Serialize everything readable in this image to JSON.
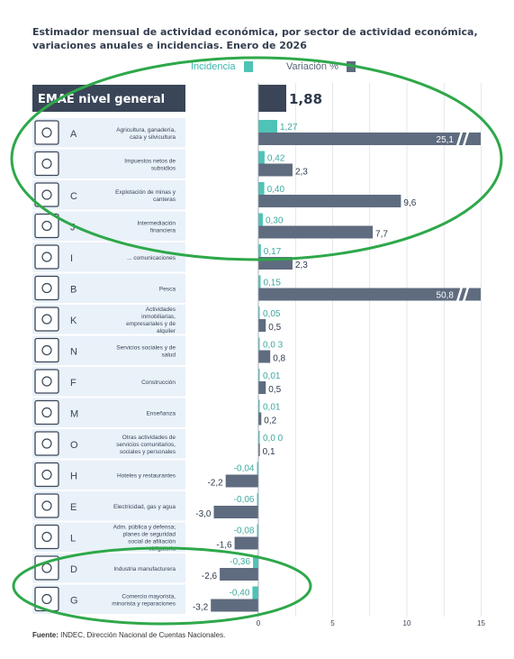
{
  "header": {
    "title_line1": "Estimador mensual de actividad económica, por sector de actividad económica,",
    "title_line2": "variaciones anuales e incidencias. Enero de 2026"
  },
  "legend": {
    "incidence_label": "Incidencia",
    "variation_label": "Variación %"
  },
  "colors": {
    "incidence": "#4fc3b6",
    "variation": "#5f6b7f",
    "header_band": "#3a4557",
    "row_band": "#e9f1f9",
    "highlight_circle": "#2ea84a"
  },
  "source": {
    "label": "Fuente:",
    "text": "INDEC, Dirección Nacional de Cuentas Nacionales."
  },
  "chart_data": {
    "type": "bar",
    "title": "Estimador mensual de actividad económica, por sector de actividad económica, variaciones anuales e incidencias. Enero de 2026",
    "xlim": [
      -3.5,
      15
    ],
    "x_ticks": [
      0,
      5,
      10,
      15
    ],
    "x_tick_labels": [
      "0",
      "5",
      "10",
      "15"
    ],
    "grid": "vertical",
    "legend_position": "top-center",
    "general": {
      "label": "EMAE nivel general",
      "value": 1.88,
      "value_label": "1,88"
    },
    "rows": [
      {
        "code": "A",
        "sector": "Agricultura, ganadería, caza y silvicultura",
        "icon": "tractor-icon",
        "incidence": 1.27,
        "incidence_label": "1,27",
        "variation": 25.1,
        "variation_label": "25,1",
        "broken": true
      },
      {
        "code": "",
        "sector": "Impuestos netos de subsidios",
        "icon": "tax-document-icon",
        "incidence": 0.42,
        "incidence_label": "0,42",
        "variation": 2.3,
        "variation_label": "2,3"
      },
      {
        "code": "C",
        "sector": "Explotación de minas y canteras",
        "icon": "oil-pump-icon",
        "incidence": 0.4,
        "incidence_label": "0,40",
        "variation": 9.6,
        "variation_label": "9,6"
      },
      {
        "code": "J",
        "sector": "Intermediación financiera",
        "icon": "bank-icon",
        "incidence": 0.3,
        "incidence_label": "0,30",
        "variation": 7.7,
        "variation_label": "7,7"
      },
      {
        "code": "I",
        "sector": "... comunicaciones",
        "icon": "transport-communications-icon",
        "incidence": 0.17,
        "incidence_label": "0,17",
        "variation": 2.3,
        "variation_label": "2,3"
      },
      {
        "code": "B",
        "sector": "Pesca",
        "icon": "fish-icon",
        "incidence": 0.15,
        "incidence_label": "0,15",
        "variation": 50.8,
        "variation_label": "50,8",
        "broken": true
      },
      {
        "code": "K",
        "sector": "Actividades inmobiliarias, empresariales y de alquiler",
        "icon": "real-estate-monitor-icon",
        "incidence": 0.05,
        "incidence_label": "0,05",
        "variation": 0.5,
        "variation_label": "0,5"
      },
      {
        "code": "N",
        "sector": "Servicios sociales y de salud",
        "icon": "health-cross-icon",
        "incidence": 0.03,
        "incidence_label": "0,0 3",
        "variation": 0.8,
        "variation_label": "0,8"
      },
      {
        "code": "F",
        "sector": "Construcción",
        "icon": "construction-icon",
        "incidence": 0.01,
        "incidence_label": "0,01",
        "variation": 0.5,
        "variation_label": "0,5"
      },
      {
        "code": "M",
        "sector": "Enseñanza",
        "icon": "book-icon",
        "incidence": 0.01,
        "incidence_label": "0,01",
        "variation": 0.2,
        "variation_label": "0,2"
      },
      {
        "code": "O",
        "sector": "Otras actividades de servicios comunitarios, sociales y personales",
        "icon": "community-services-icon",
        "incidence": 0.0,
        "incidence_label": "0,0 0",
        "variation": 0.1,
        "variation_label": "0,1"
      },
      {
        "code": "H",
        "sector": "Hoteles y restaurantes",
        "icon": "cutlery-icon",
        "incidence": -0.04,
        "incidence_label": "-0,04",
        "variation": -2.2,
        "variation_label": "-2,2"
      },
      {
        "code": "E",
        "sector": "Electricidad, gas y agua",
        "icon": "utilities-icon",
        "incidence": -0.06,
        "incidence_label": "-0,06",
        "variation": -3.0,
        "variation_label": "-3,0"
      },
      {
        "code": "L",
        "sector": "Adm. pública y defensa; planes de seguridad social de afiliación obligatoria",
        "icon": "public-building-icon",
        "incidence": -0.08,
        "incidence_label": "-0,08",
        "variation": -1.6,
        "variation_label": "-1,6"
      },
      {
        "code": "D",
        "sector": "Industria manufacturera",
        "icon": "gears-icon",
        "incidence": -0.36,
        "incidence_label": "-0,36",
        "variation": -2.6,
        "variation_label": "-2,6"
      },
      {
        "code": "G",
        "sector": "Comercio mayorista, minorista y reparaciones",
        "icon": "shopping-cart-icon",
        "incidence": -0.4,
        "incidence_label": "-0,40",
        "variation": -3.2,
        "variation_label": "-3,2"
      }
    ]
  }
}
